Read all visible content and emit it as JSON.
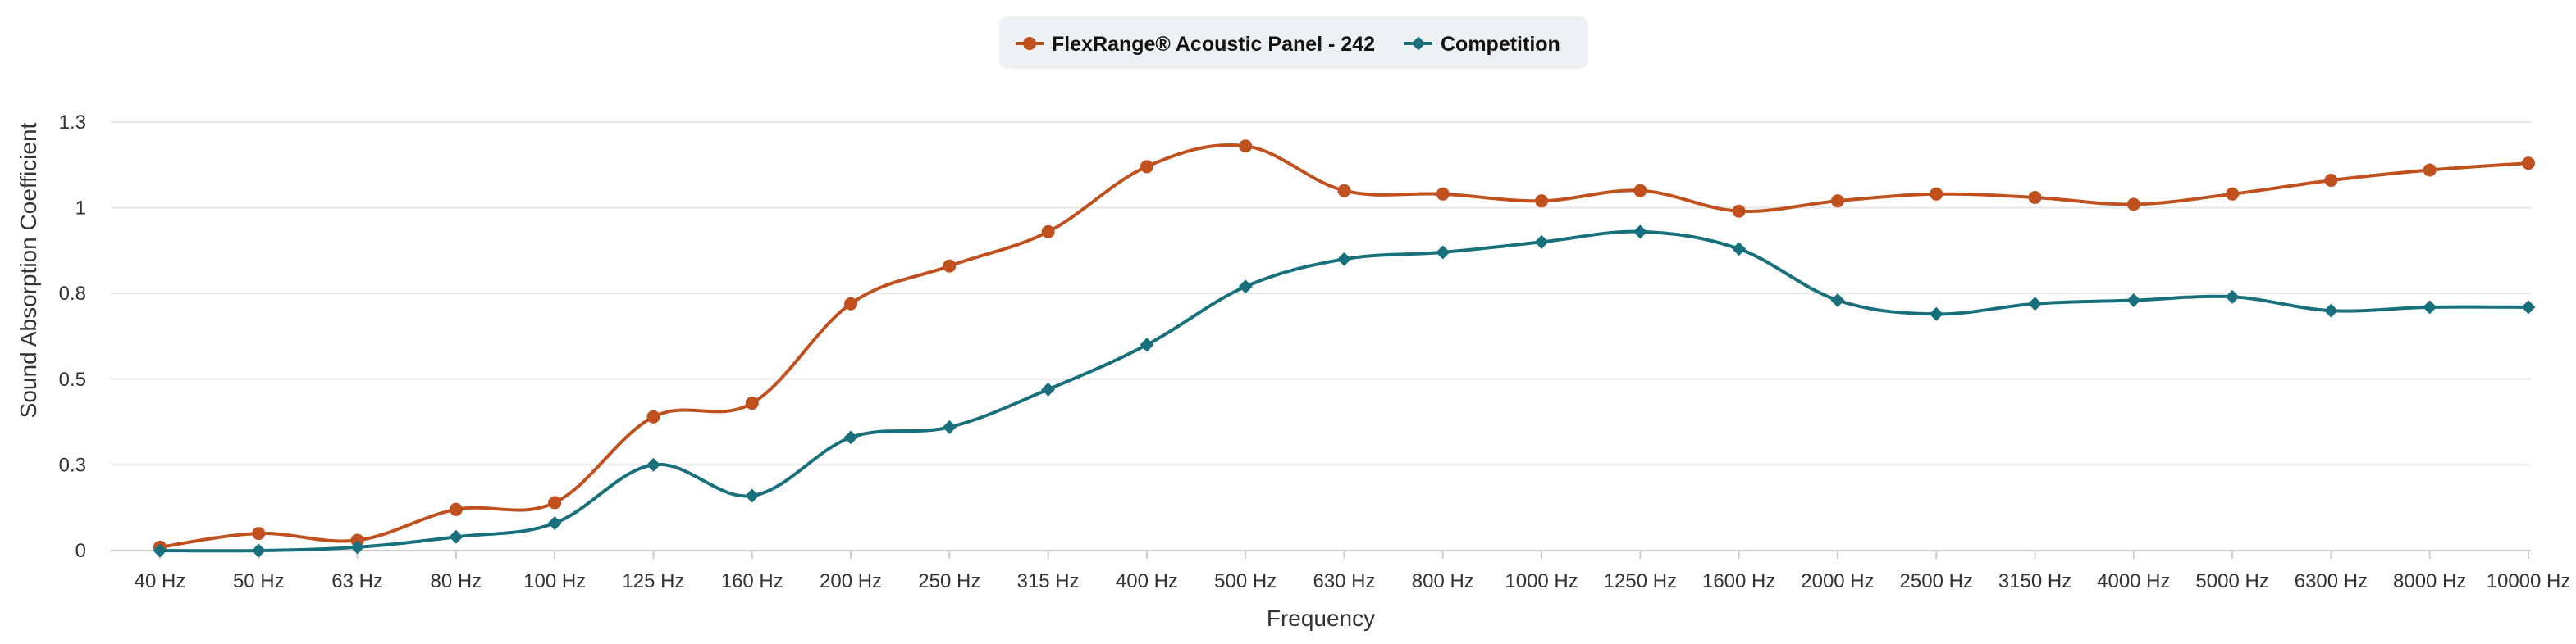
{
  "chart_data": {
    "type": "line",
    "title": "",
    "xlabel": "Frequency",
    "ylabel": "Sound Absorption Coefficient",
    "ylim": [
      0,
      1.3
    ],
    "y_ticks": [
      0,
      0.25,
      0.5,
      0.75,
      1,
      1.25
    ],
    "y_tick_labels": [
      "0",
      "0.3",
      "0.5",
      "0.8",
      "1",
      "1.3"
    ],
    "grid": true,
    "legend_position": "top-center",
    "categories": [
      "40 Hz",
      "50 Hz",
      "63 Hz",
      "80 Hz",
      "100 Hz",
      "125 Hz",
      "160 Hz",
      "200 Hz",
      "250 Hz",
      "315 Hz",
      "400 Hz",
      "500 Hz",
      "630 Hz",
      "800 Hz",
      "1000 Hz",
      "1250 Hz",
      "1600 Hz",
      "2000 Hz",
      "2500 Hz",
      "3150 Hz",
      "4000 Hz",
      "5000 Hz",
      "6300 Hz",
      "8000 Hz",
      "10000 Hz"
    ],
    "series": [
      {
        "name": "FlexRange® Acoustic Panel - 242",
        "color": "#c0501e",
        "marker": "circle",
        "values": [
          0.01,
          0.05,
          0.03,
          0.12,
          0.14,
          0.39,
          0.43,
          0.72,
          0.83,
          0.93,
          1.12,
          1.18,
          1.05,
          1.04,
          1.02,
          1.05,
          0.99,
          1.02,
          1.04,
          1.03,
          1.01,
          1.04,
          1.08,
          1.11,
          1.13
        ]
      },
      {
        "name": "Competition",
        "color": "#17707c",
        "marker": "diamond",
        "values": [
          0.0,
          0.0,
          0.01,
          0.04,
          0.08,
          0.25,
          0.16,
          0.33,
          0.36,
          0.47,
          0.6,
          0.77,
          0.85,
          0.87,
          0.9,
          0.93,
          0.88,
          0.73,
          0.69,
          0.72,
          0.73,
          0.74,
          0.7,
          0.71,
          0.71
        ]
      }
    ]
  }
}
